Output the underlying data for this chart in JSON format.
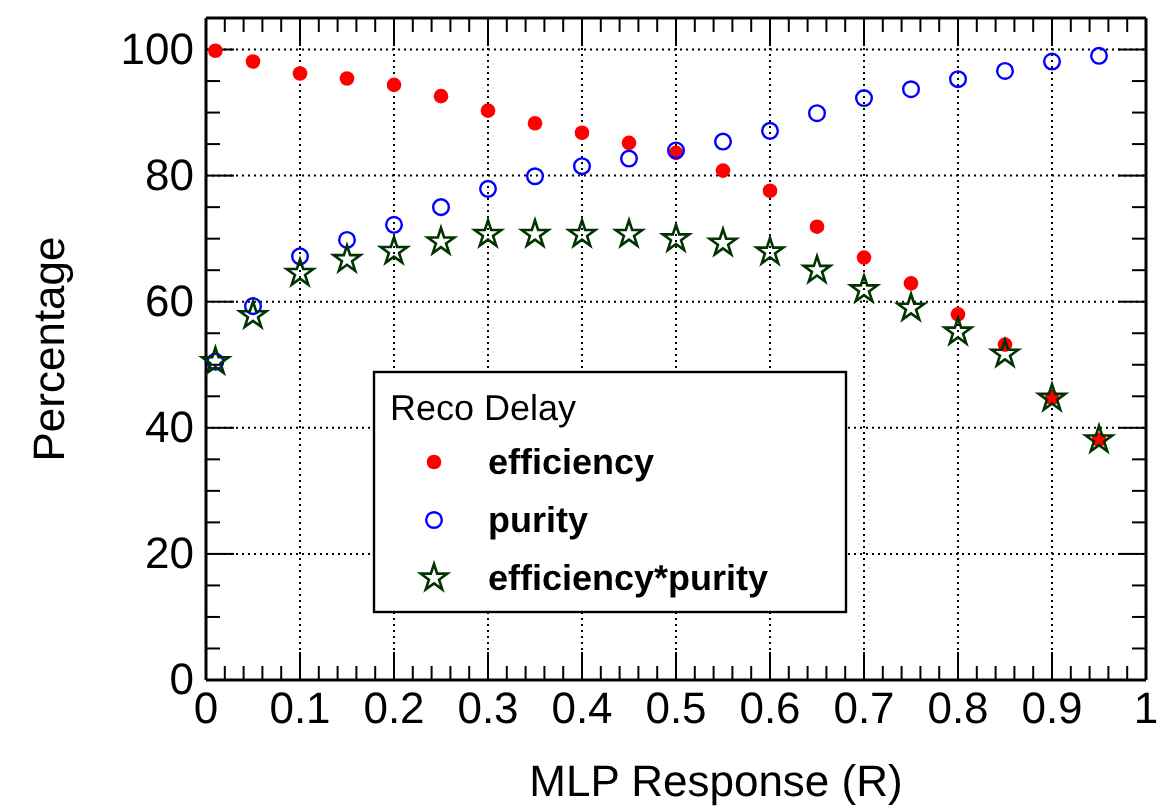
{
  "chart_data": {
    "type": "scatter",
    "xlabel": "MLP Response (R)",
    "ylabel": "Percentage",
    "legend_title": "Reco Delay",
    "legend": "bottom",
    "grid": true,
    "x": [
      0.01,
      0.05,
      0.1,
      0.15,
      0.2,
      0.25,
      0.3,
      0.35,
      0.4,
      0.45,
      0.5,
      0.55,
      0.6,
      0.65,
      0.7,
      0.75,
      0.8,
      0.85,
      0.9,
      0.95
    ],
    "xlim": [
      0,
      1
    ],
    "ylim": [
      0,
      105
    ],
    "xticks": [
      0,
      {
        "value": 0.02,
        "label": null
      },
      {
        "value": 0.04,
        "label": null
      },
      {
        "value": 0.06,
        "label": null
      },
      {
        "value": 0.08,
        "label": null
      },
      0.1,
      {
        "value": 0.12,
        "label": null
      },
      {
        "value": 0.14,
        "label": null
      },
      {
        "value": 0.16,
        "label": null
      },
      {
        "value": 0.18,
        "label": null
      },
      0.2,
      {
        "value": 0.22,
        "label": null
      },
      {
        "value": 0.24,
        "label": null
      },
      {
        "value": 0.26,
        "label": null
      },
      {
        "value": 0.28,
        "label": null
      },
      0.3,
      {
        "value": 0.32,
        "label": null
      },
      {
        "value": 0.34,
        "label": null
      },
      {
        "value": 0.36,
        "label": null
      },
      {
        "value": 0.38,
        "label": null
      },
      0.4,
      {
        "value": 0.42,
        "label": null
      },
      {
        "value": 0.44,
        "label": null
      },
      {
        "value": 0.46,
        "label": null
      },
      {
        "value": 0.48,
        "label": null
      },
      0.5,
      {
        "value": 0.52,
        "label": null
      },
      {
        "value": 0.54,
        "label": null
      },
      {
        "value": 0.56,
        "label": null
      },
      {
        "value": 0.58,
        "label": null
      },
      0.6,
      {
        "value": 0.62,
        "label": null
      },
      {
        "value": 0.64,
        "label": null
      },
      {
        "value": 0.66,
        "label": null
      },
      {
        "value": 0.68,
        "label": null
      },
      0.7,
      {
        "value": 0.72,
        "label": null
      },
      {
        "value": 0.74,
        "label": null
      },
      {
        "value": 0.76,
        "label": null
      },
      {
        "value": 0.78,
        "label": null
      },
      0.8,
      {
        "value": 0.82,
        "label": null
      },
      {
        "value": 0.84,
        "label": null
      },
      {
        "value": 0.86,
        "label": null
      },
      {
        "value": 0.88,
        "label": null
      },
      0.9,
      {
        "value": 0.92,
        "label": null
      },
      {
        "value": 0.94,
        "label": null
      },
      {
        "value": 0.96,
        "label": null
      },
      {
        "value": 0.98,
        "label": null
      },
      1
    ],
    "yticks": [
      0,
      {
        "value": 5,
        "label": null
      },
      {
        "value": 10,
        "label": null
      },
      {
        "value": 15,
        "label": null
      },
      20,
      {
        "value": 25,
        "label": null
      },
      {
        "value": 30,
        "label": null
      },
      {
        "value": 35,
        "label": null
      },
      40,
      {
        "value": 45,
        "label": null
      },
      {
        "value": 50,
        "label": null
      },
      {
        "value": 55,
        "label": null
      },
      60,
      {
        "value": 65,
        "label": null
      },
      {
        "value": 70,
        "label": null
      },
      {
        "value": 75,
        "label": null
      },
      80,
      {
        "value": 85,
        "label": null
      },
      {
        "value": 90,
        "label": null
      },
      {
        "value": 95,
        "label": null
      },
      100,
      {
        "value": 105,
        "label": null
      }
    ],
    "series": [
      {
        "name": "efficiency",
        "color": "#ff0000",
        "marker": "circle",
        "values": [
          99.8,
          98.1,
          96.2,
          95.4,
          94.4,
          92.6,
          90.3,
          88.3,
          86.8,
          85.2,
          83.6,
          80.8,
          77.6,
          71.9,
          67,
          62.9,
          58,
          53.2,
          44.7,
          38.1
        ]
      },
      {
        "name": "purity",
        "color": "#0000ff",
        "marker": "circle-open",
        "values": [
          50.5,
          59.3,
          67.2,
          69.8,
          72.2,
          75,
          77.9,
          79.9,
          81.5,
          82.7,
          84,
          85.4,
          87.1,
          89.9,
          92.3,
          93.7,
          95.3,
          96.6,
          98.1,
          99
        ]
      },
      {
        "name": "efficiency*purity",
        "color": "#003300",
        "marker": "star",
        "values": [
          50.5,
          57.8,
          64.5,
          66.7,
          68,
          69.5,
          70.7,
          70.7,
          70.7,
          70.7,
          70,
          69.3,
          67.9,
          65,
          61.9,
          59,
          55.2,
          51.7,
          44.7,
          38.1
        ]
      }
    ]
  }
}
